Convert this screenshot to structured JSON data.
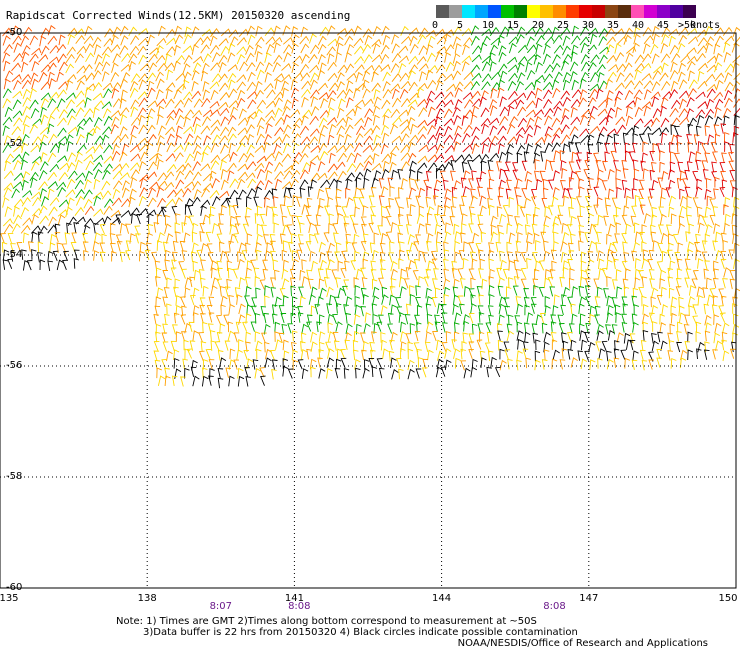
{
  "title": "Rapidscat Corrected Winds(12.5KM) 20150320 ascending",
  "legend": {
    "units": "knots",
    "swatches": [
      "#5a5a5a",
      "#9c9c9c",
      "#00e6ff",
      "#00a6ff",
      "#0055ff",
      "#00c000",
      "#008000",
      "#ffff00",
      "#ffc000",
      "#ff8c00",
      "#ff3c00",
      "#e60000",
      "#c80000",
      "#8b4513",
      "#5a2d0c",
      "#ff50b4",
      "#d200d2",
      "#8c00c8",
      "#5000a0",
      "#3c0050"
    ],
    "ticks": [
      "0",
      "5",
      "10",
      "15",
      "20",
      "25",
      "30",
      "35",
      "40",
      "45",
      ">50"
    ]
  },
  "map": {
    "lon_range": [
      135,
      150
    ],
    "lat_range": [
      -60,
      -50
    ],
    "lat_labels": [
      "-50",
      "-52",
      "-54",
      "-56",
      "-58",
      "-60"
    ],
    "lon_labels": [
      "135",
      "138",
      "141",
      "144",
      "147",
      "150"
    ],
    "time_labels": [
      {
        "text": "8:07",
        "lon": 139.5
      },
      {
        "text": "8:08",
        "lon": 141.1
      },
      {
        "text": "8:08",
        "lon": 146.3
      }
    ]
  },
  "notes": {
    "line1": "Note: 1) Times are GMT 2)Times along bottom correspond to measurement at ~50S",
    "line2": "3)Data buffer is 22 hrs from 20150320 4) Black circles indicate possible contamination"
  },
  "credit": "NOAA/NESDIS/Office of Research and Applications"
}
